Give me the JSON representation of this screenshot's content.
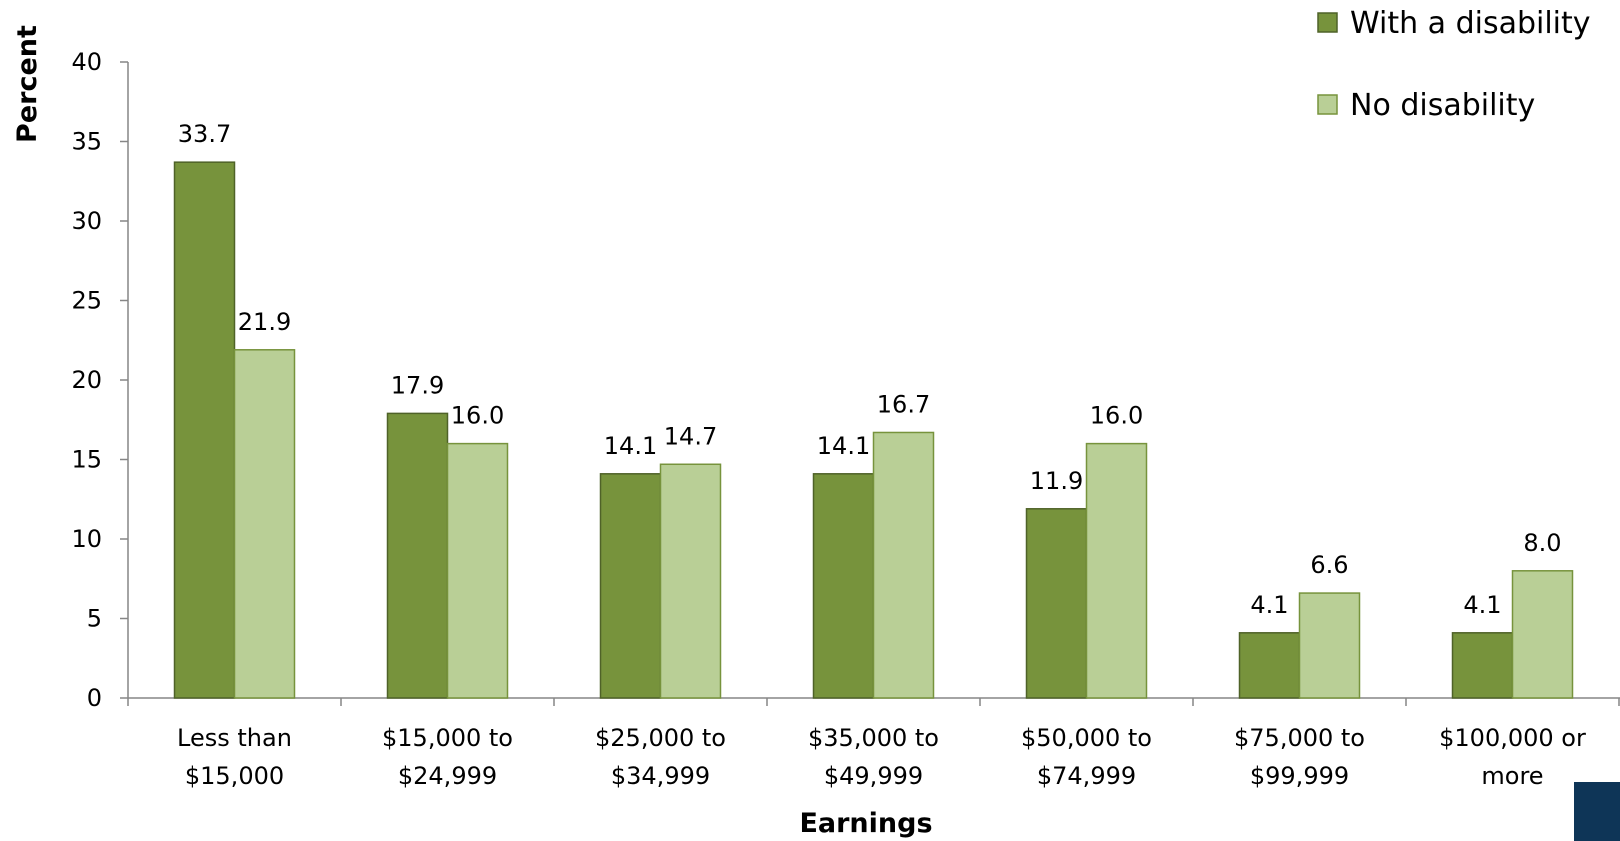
{
  "chart_data": {
    "type": "bar",
    "xlabel": "Earnings",
    "ylabel": "Percent",
    "ylim": [
      0,
      40
    ],
    "yticks": [
      0,
      5,
      10,
      15,
      20,
      25,
      30,
      35,
      40
    ],
    "grid": false,
    "legend_position": "top-right",
    "categories": [
      [
        "Less than",
        "$15,000"
      ],
      [
        "$15,000 to",
        "$24,999"
      ],
      [
        "$25,000 to",
        "$34,999"
      ],
      [
        "$35,000 to",
        "$49,999"
      ],
      [
        "$50,000 to",
        "$74,999"
      ],
      [
        "$75,000 to",
        "$99,999"
      ],
      [
        "$100,000 or",
        "more"
      ]
    ],
    "series": [
      {
        "name": "With a disability",
        "color": "#77933C",
        "border": "#4F6228",
        "values": [
          33.7,
          17.9,
          14.1,
          14.1,
          11.9,
          4.1,
          4.1
        ],
        "labels": [
          "33.7",
          "17.9",
          "14.1",
          "14.1",
          "11.9",
          "4.1",
          "4.1"
        ]
      },
      {
        "name": "No disability",
        "color": "#B9CF96",
        "border": "#77933C",
        "values": [
          21.9,
          16.0,
          14.7,
          16.7,
          16.0,
          6.6,
          8.0
        ],
        "labels": [
          "21.9",
          "16.0",
          "14.7",
          "16.7",
          "16.0",
          "6.6",
          "8.0"
        ]
      }
    ]
  },
  "corner_badge_color": "#0E3557"
}
